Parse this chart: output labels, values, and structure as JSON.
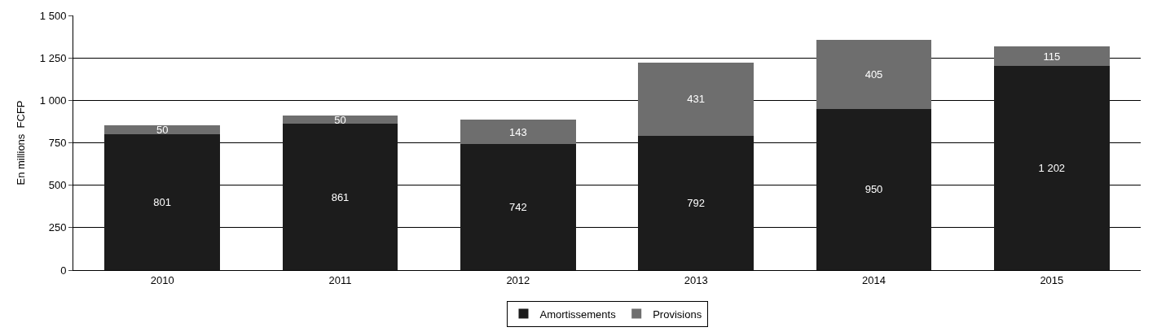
{
  "chart_data": {
    "type": "bar",
    "stacked": true,
    "ylabel": "En millions  FCFP",
    "categories": [
      "2010",
      "2011",
      "2012",
      "2013",
      "2014",
      "2015"
    ],
    "series": [
      {
        "name": "Amortissements",
        "color": "#1c1c1c",
        "values": [
          801,
          861,
          742,
          792,
          950,
          1202
        ],
        "value_labels": [
          "801",
          "861",
          "742",
          "792",
          "950",
          "1 202"
        ]
      },
      {
        "name": "Provisions",
        "color": "#6e6e6e",
        "values": [
          50,
          50,
          143,
          431,
          405,
          115
        ],
        "value_labels": [
          "50",
          "50",
          "143",
          "431",
          "405",
          "115"
        ]
      }
    ],
    "ylim": [
      0,
      1500
    ],
    "yticks": [
      0,
      250,
      500,
      750,
      {
        "value": 1000,
        "label": "1 000"
      },
      {
        "value": 1250,
        "label": "1 250"
      },
      {
        "value": 1500,
        "label": "1 500"
      }
    ],
    "grid": "y",
    "legend": "bottom"
  }
}
